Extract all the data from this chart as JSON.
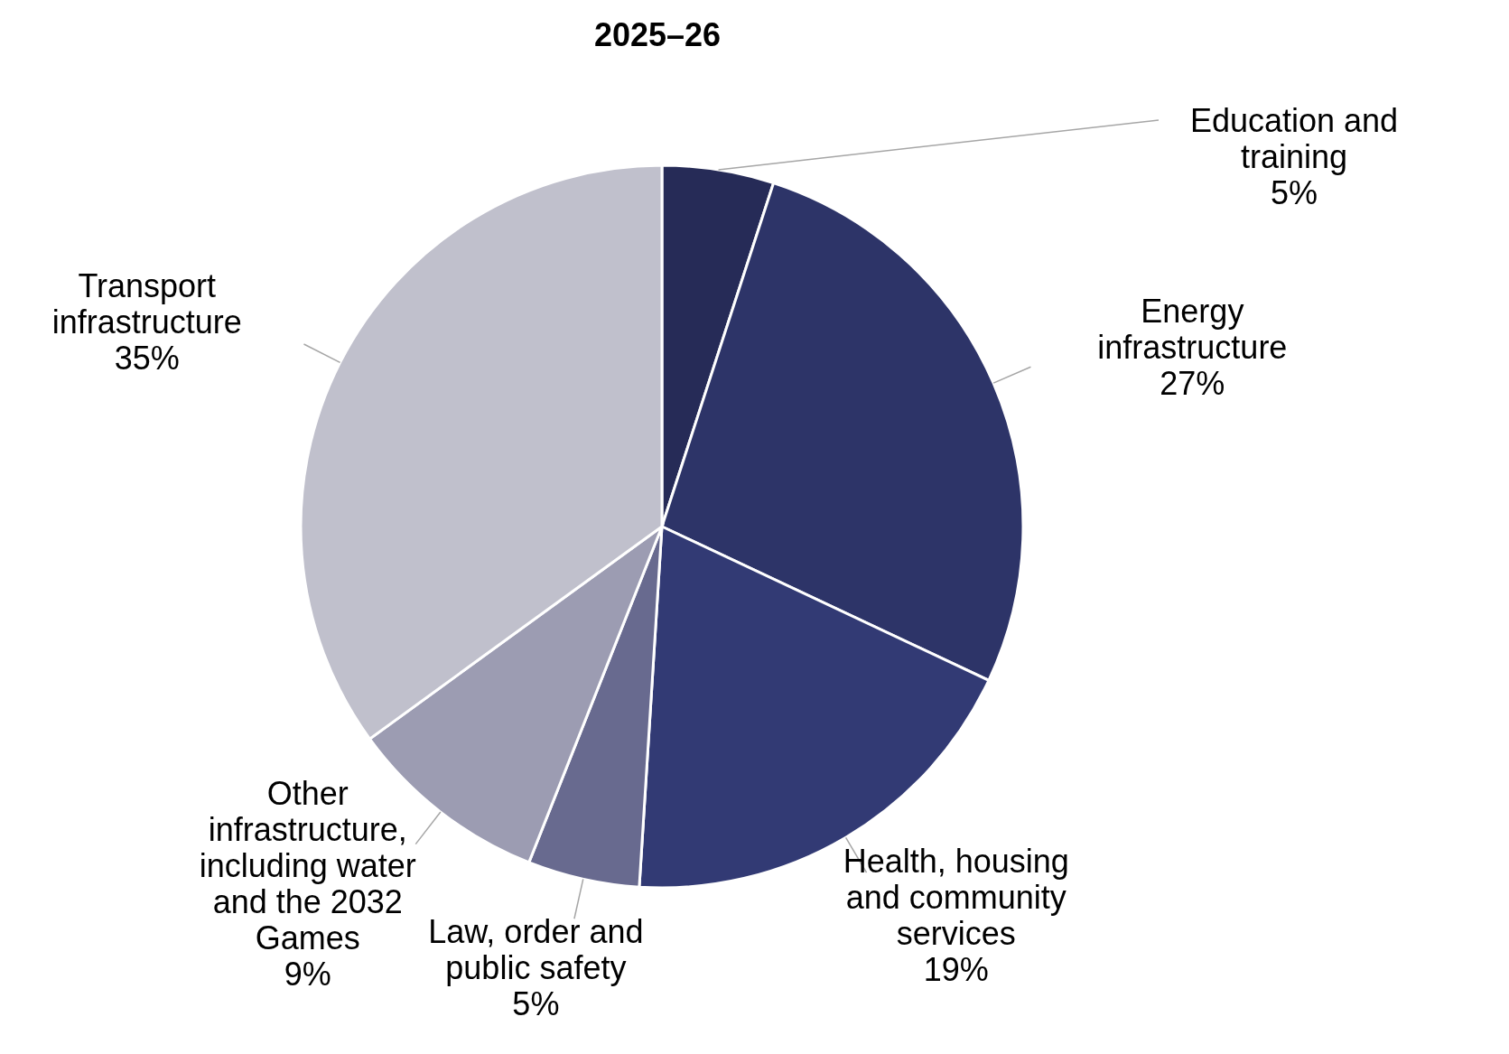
{
  "chart_data": {
    "type": "pie",
    "title": "2025–26",
    "categories": [
      "Education and training",
      "Energy infrastructure",
      "Health, housing and community services",
      "Law, order and public safety",
      "Other infrastructure, including water and the 2032 Games",
      "Transport infrastructure"
    ],
    "values": [
      5,
      27,
      19,
      5,
      9,
      35
    ],
    "value_labels": [
      "5%",
      "27%",
      "19%",
      "5%",
      "9%",
      "35%"
    ],
    "colors": [
      "#262b57",
      "#2d3468",
      "#323a74",
      "#686a8f",
      "#9c9cb2",
      "#c0c0cc"
    ]
  }
}
